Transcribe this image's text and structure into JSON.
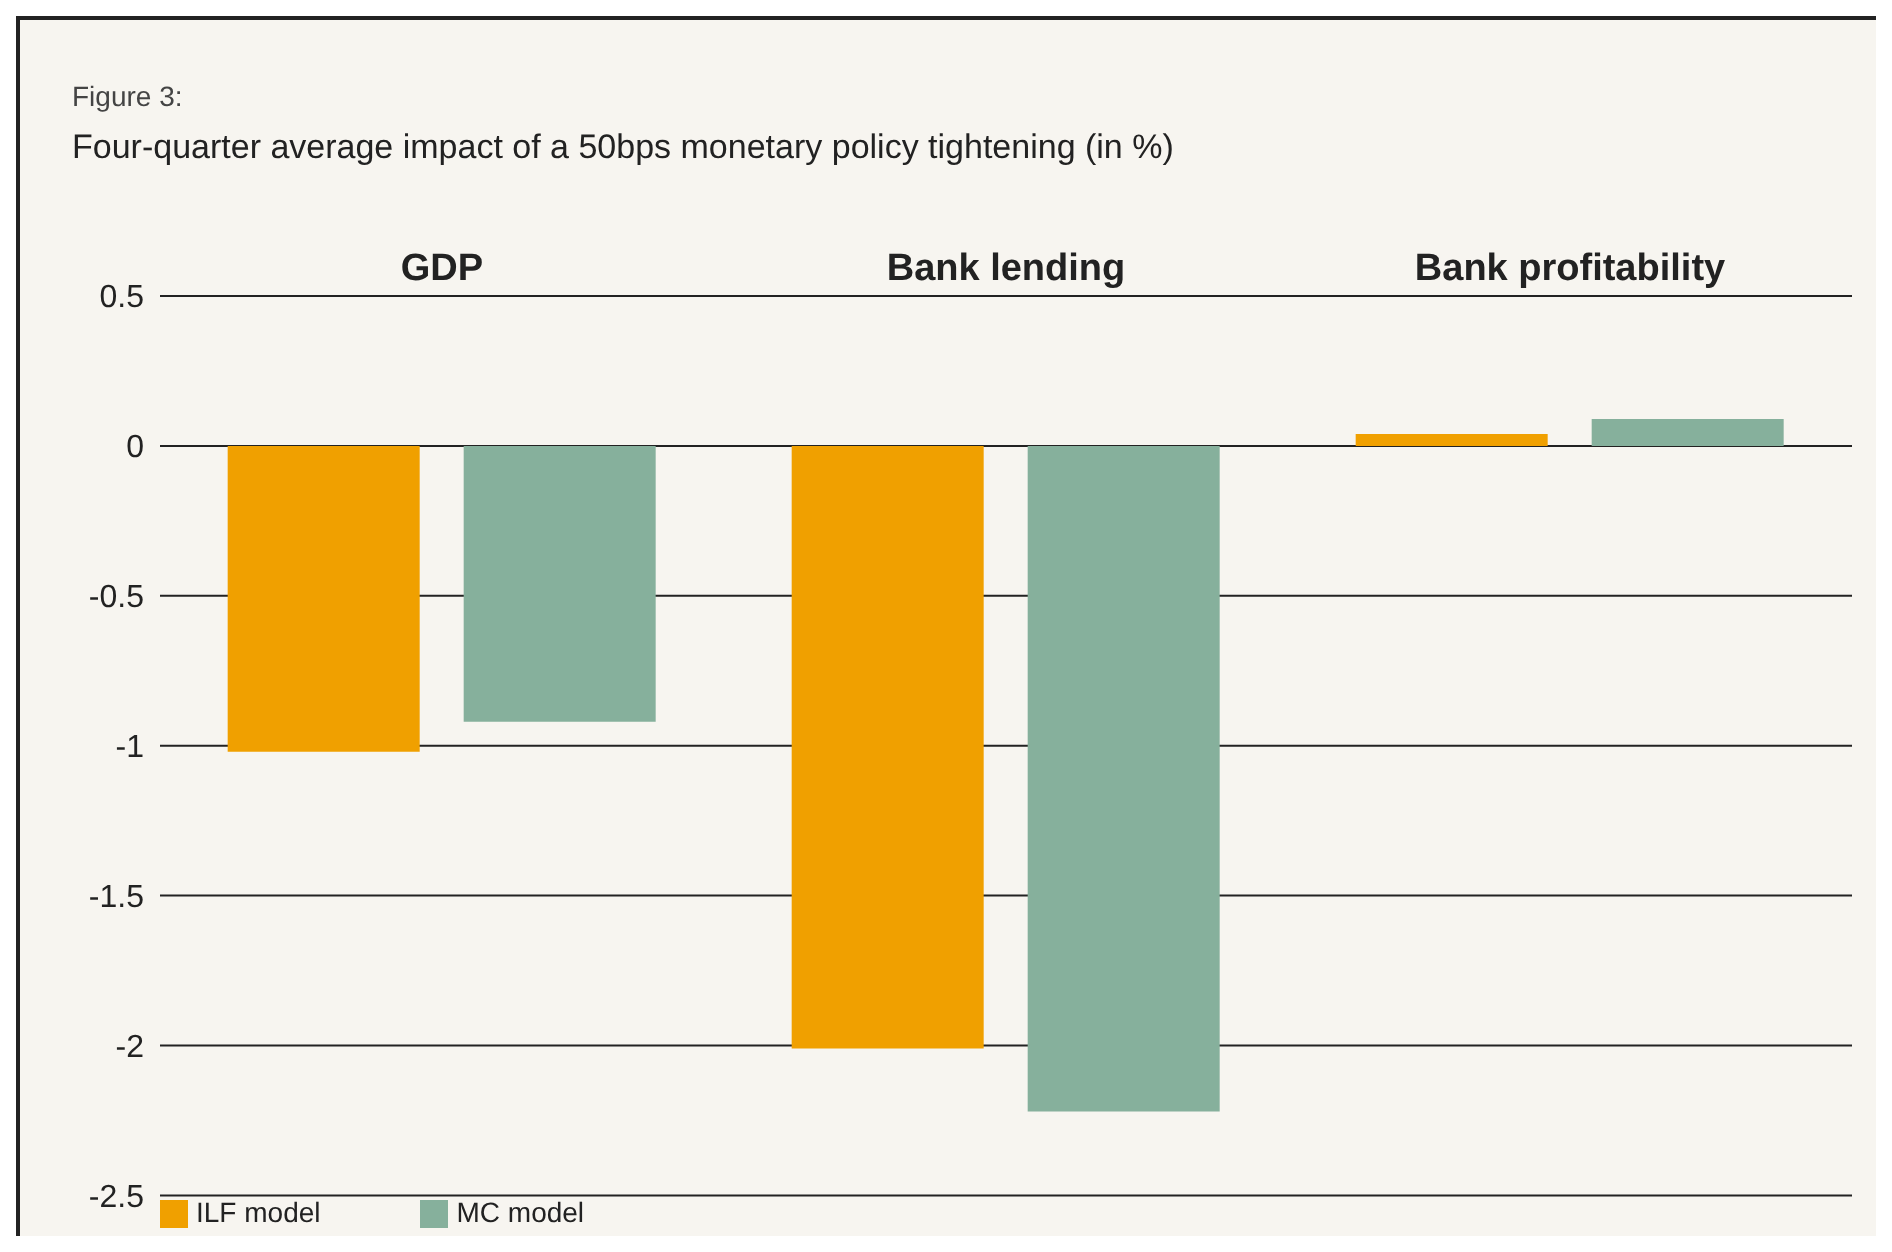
{
  "chart_data": {
    "type": "bar",
    "subtitle": "Figure 3:",
    "title": "Four-quarter average impact of a 50bps monetary policy tightening (in %)",
    "categories": [
      "GDP",
      "Bank lending",
      "Bank profitability"
    ],
    "series": [
      {
        "name": "ILF model",
        "color": "#f0a000",
        "values": [
          -1.02,
          -2.01,
          0.04
        ]
      },
      {
        "name": "MC model",
        "color": "#86b09c",
        "values": [
          -0.92,
          -2.22,
          0.09
        ]
      }
    ],
    "ylim": [
      -2.5,
      0.5
    ],
    "yticks": [
      {
        "value": 0.5,
        "label": "0.5"
      },
      0,
      {
        "value": -0.5,
        "label": "-0.5"
      },
      -1,
      {
        "value": -1.5,
        "label": "-1.5"
      },
      -2,
      {
        "value": -2.5,
        "label": "-2.5"
      }
    ],
    "grid": "y",
    "legend": "bottom left"
  }
}
